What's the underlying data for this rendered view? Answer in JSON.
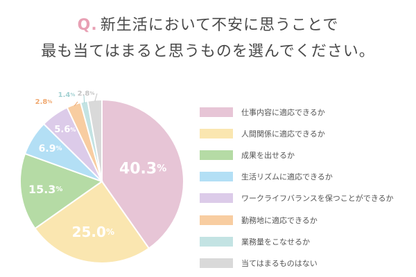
{
  "question": {
    "prefix": "Q.",
    "line1": "新生活において不安に思うことで",
    "line2": "最も当てはまると思うものを選んでください。"
  },
  "chart_data": {
    "type": "pie",
    "title": "",
    "series": [
      {
        "label": "仕事内容に適応できるか",
        "value": 40.3,
        "display": "40.3",
        "unit": "%",
        "color": "#e7c5d6",
        "label_color": "#ffffff"
      },
      {
        "label": "人間関係に適応できるか",
        "value": 25.0,
        "display": "25.0",
        "unit": "%",
        "color": "#fae6b0",
        "label_color": "#ffffff"
      },
      {
        "label": "成果を出せるか",
        "value": 15.3,
        "display": "15.3",
        "unit": "%",
        "color": "#b5dba5",
        "label_color": "#ffffff"
      },
      {
        "label": "生活リズムに適応できるか",
        "value": 6.9,
        "display": "6.9",
        "unit": "%",
        "color": "#b3dff5",
        "label_color": "#ffffff"
      },
      {
        "label": "ワークライフバランスを保つことができるか",
        "value": 5.6,
        "display": "5.6",
        "unit": "%",
        "color": "#dccbe9",
        "label_color": "#ffffff"
      },
      {
        "label": "勤務地に適応できるか",
        "value": 2.8,
        "display": "2.8",
        "unit": "%",
        "color": "#f8cda1",
        "label_color": "#f0a970"
      },
      {
        "label": "業務量をこなせるか",
        "value": 1.4,
        "display": "1.4",
        "unit": "%",
        "color": "#c3e3e3",
        "label_color": "#a3d1d2"
      },
      {
        "label": "当てはまるものはない",
        "value": 2.8,
        "display": "2.8",
        "unit": "%",
        "color": "#d9d9d9",
        "label_color": "#c4c4c4"
      }
    ]
  }
}
